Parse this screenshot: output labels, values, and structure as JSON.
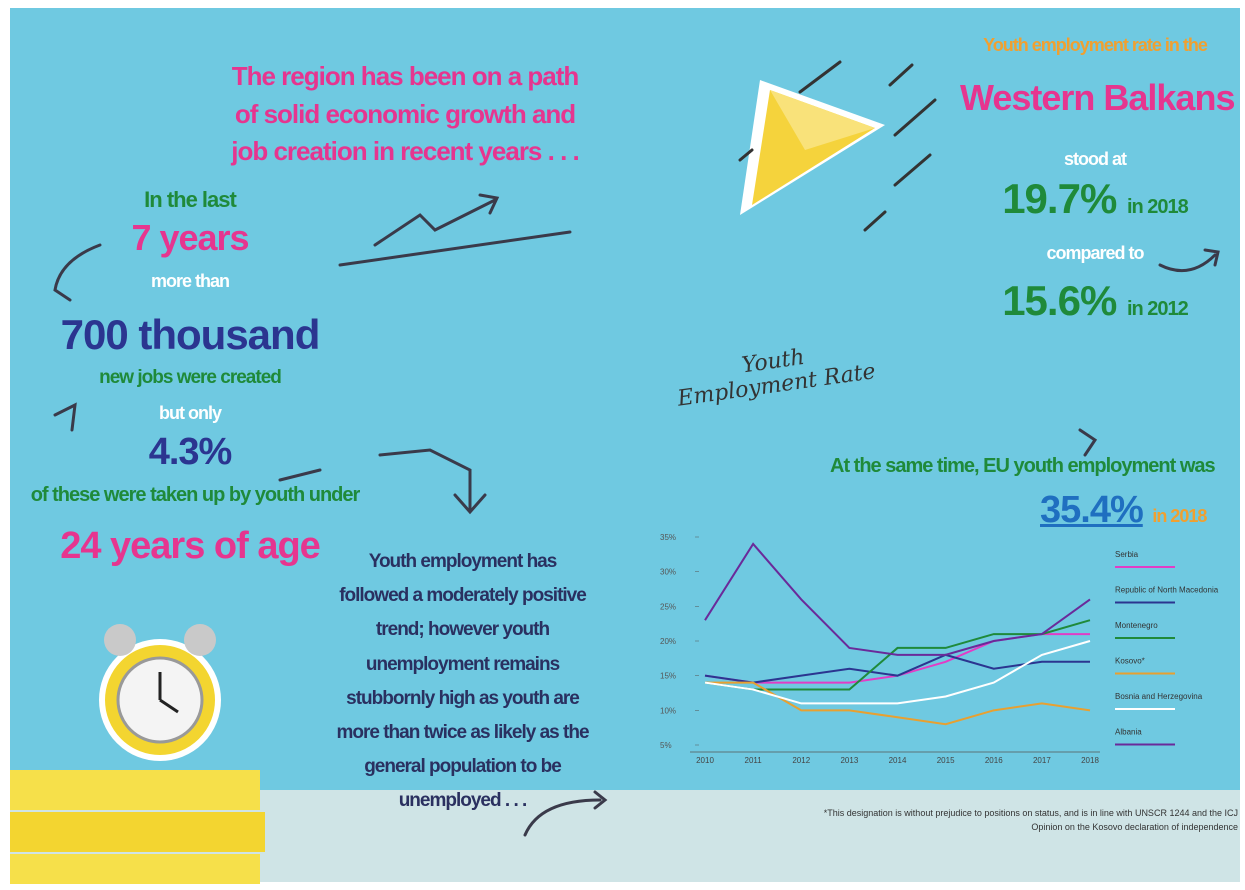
{
  "headline": "The region has been on a path of solid economic growth and job creation in recent years . . .",
  "left_block": {
    "intro": "In the last",
    "years": "7 years",
    "more_than": "more than",
    "jobs_number": "700",
    "jobs_unit": "thousand",
    "jobs_created": "new jobs were created",
    "but_only": "but only",
    "youth_share": "4.3%",
    "taken_up": "of these were taken up by youth under",
    "age": "24 years of age"
  },
  "right_block": {
    "intro": "Youth employment rate in the",
    "region": "Western Balkans",
    "stood_at": "stood at",
    "rate_2018": "19.7%",
    "year_2018": "in 2018",
    "compared_to": "compared to",
    "rate_2012": "15.6%",
    "year_2012": "in 2012"
  },
  "handwritten_title": "Youth Employment Rate",
  "eu_block": {
    "intro": "At the same time, EU youth employment was",
    "rate": "35.4%",
    "year": "in 2018"
  },
  "trend_text": "Youth employment has followed a moderately positive trend; however youth unemployment remains stubbornly high as youth are more than twice as likely as the general population to be unemployed . . .",
  "footnote": "*This designation is without prejudice to positions on status, and is in line with UNSCR 1244 and the ICJ Opinion on the Kosovo declaration of independence",
  "chart_data": {
    "type": "line",
    "categories": [
      "2010",
      "2011",
      "2012",
      "2013",
      "2014",
      "2015",
      "2016",
      "2017",
      "2018"
    ],
    "ylim": [
      5,
      35
    ],
    "yticks": [
      {
        "value": 5,
        "label": "5%"
      },
      {
        "value": 10,
        "label": "10%"
      },
      {
        "value": 15,
        "label": "15%"
      },
      {
        "value": 20,
        "label": "20%"
      },
      {
        "value": 25,
        "label": "25%"
      },
      {
        "value": 30,
        "label": "30%"
      },
      {
        "value": 35,
        "label": "35%"
      }
    ],
    "series": [
      {
        "name": "Serbia",
        "color": "#e23cc6",
        "values": [
          15,
          14,
          14,
          14,
          15,
          17,
          20,
          21,
          21
        ]
      },
      {
        "name": "Republic of North Macedonia",
        "color": "#2b3590",
        "values": [
          15,
          14,
          15,
          16,
          15,
          18,
          16,
          17,
          17
        ]
      },
      {
        "name": "Montenegro",
        "color": "#1f8a3a",
        "values": [
          14,
          13,
          13,
          13,
          19,
          19,
          21,
          21,
          23
        ]
      },
      {
        "name": "Kosovo*",
        "color": "#e8a030",
        "values": [
          14,
          14,
          10,
          10,
          9,
          8,
          10,
          11,
          10
        ]
      },
      {
        "name": "Bosnia and Herzegovina",
        "color": "#ffffff",
        "values": [
          14,
          13,
          11,
          11,
          11,
          12,
          14,
          18,
          20
        ]
      },
      {
        "name": "Albania",
        "color": "#6a2a9a",
        "values": [
          23,
          34,
          26,
          19,
          18,
          18,
          20,
          21,
          26
        ]
      }
    ]
  }
}
